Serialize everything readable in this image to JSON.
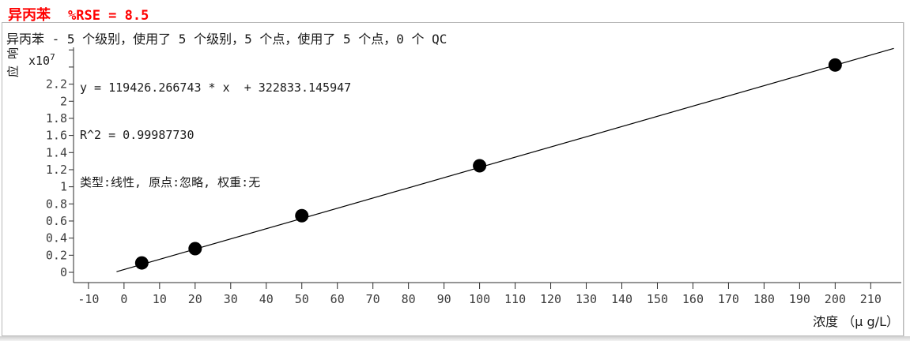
{
  "header": {
    "compound": "异丙苯",
    "rse": "%RSE = 8.5",
    "accent_color": "#ff0000"
  },
  "subtitle": "异丙苯 - 5 个级别，使用了 5 个级别，5 个点，使用了 5 个点，0 个 QC",
  "stats": {
    "equation": "y = 119426.266743 * x  + 322833.145947",
    "r2": "R^2 = 0.99987730",
    "fit_desc": "类型:线性, 原点:忽略, 权重:无"
  },
  "axes": {
    "y_label_char1": "响",
    "y_label_char2": "应",
    "y_multiplier": "x10",
    "y_exponent": "7",
    "x_unit_label": "浓度 （μ g/L）"
  },
  "chart_data": {
    "type": "scatter",
    "title": "异丙苯  %RSE = 8.5",
    "xlabel": "浓度 （μ g/L）",
    "ylabel": "响应 x10^7",
    "x_ticks": [
      -10,
      0,
      10,
      20,
      30,
      40,
      50,
      60,
      70,
      80,
      90,
      100,
      110,
      120,
      130,
      140,
      150,
      160,
      170,
      180,
      190,
      200,
      210
    ],
    "y_ticks_labeled": [
      0,
      0.2,
      0.4,
      0.6,
      0.8,
      1,
      1.2,
      1.4,
      1.6,
      1.8,
      2,
      2.2
    ],
    "y_ticks_unlabeled": [
      2.4,
      2.6
    ],
    "xlim": [
      -14.2,
      218.6
    ],
    "ylim_x1e7": [
      -0.12,
      2.63
    ],
    "points": [
      {
        "conc": 5,
        "response": 1100000
      },
      {
        "conc": 20,
        "response": 2770000
      },
      {
        "conc": 50,
        "response": 6620000
      },
      {
        "conc": 100,
        "response": 12460000
      },
      {
        "conc": 200,
        "response": 24240000
      }
    ],
    "fit": {
      "type": "linear",
      "slope": 119426.266743,
      "intercept": 322833.145947,
      "r2": 0.9998773,
      "line_conc_range": [
        -2.1,
        216.5
      ]
    },
    "grid": false,
    "legend": false,
    "point_color": "#000000",
    "line_color": "#000000",
    "axis_color": "#2b2b2b",
    "tick_label_color": "#3c3c3c"
  }
}
